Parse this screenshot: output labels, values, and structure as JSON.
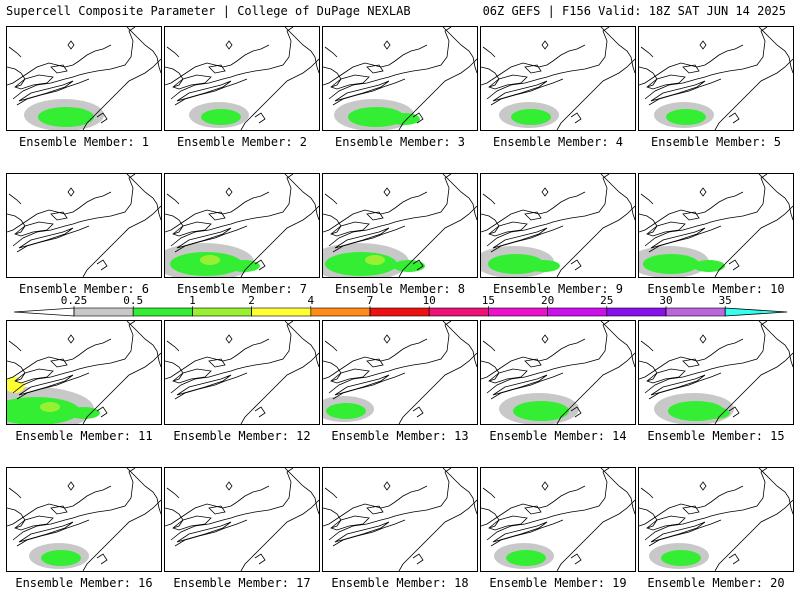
{
  "header": {
    "left_title": "Supercell Composite Parameter | College of DuPage NEXLAB",
    "right_title": "06Z GEFS | F156 Valid: 18Z SAT JUN 14 2025"
  },
  "legend": {
    "ticks": [
      "0.25",
      "0.5",
      "1",
      "2",
      "4",
      "7",
      "10",
      "15",
      "20",
      "25",
      "30",
      "35"
    ],
    "colors": [
      "#c8c8c8",
      "#33ee33",
      "#99f033",
      "#ffff33",
      "#ff8c1a",
      "#ee1111",
      "#ee1177",
      "#ee11cc",
      "#cc11ee",
      "#8811ee",
      "#bb66dd",
      "#33ffee"
    ]
  },
  "panels": [
    {
      "label": "Ensemble Member: 1",
      "intensity": 2
    },
    {
      "label": "Ensemble Member: 2",
      "intensity": 1
    },
    {
      "label": "Ensemble Member: 3",
      "intensity": 2
    },
    {
      "label": "Ensemble Member: 4",
      "intensity": 1
    },
    {
      "label": "Ensemble Member: 5",
      "intensity": 1
    },
    {
      "label": "Ensemble Member: 6",
      "intensity": 0
    },
    {
      "label": "Ensemble Member: 7",
      "intensity": 3
    },
    {
      "label": "Ensemble Member: 8",
      "intensity": 3
    },
    {
      "label": "Ensemble Member: 9",
      "intensity": 2
    },
    {
      "label": "Ensemble Member: 10",
      "intensity": 2
    },
    {
      "label": "Ensemble Member: 11",
      "intensity": 4
    },
    {
      "label": "Ensemble Member: 12",
      "intensity": 0
    },
    {
      "label": "Ensemble Member: 13",
      "intensity": 1
    },
    {
      "label": "Ensemble Member: 14",
      "intensity": 2
    },
    {
      "label": "Ensemble Member: 15",
      "intensity": 2
    },
    {
      "label": "Ensemble Member: 16",
      "intensity": 1
    },
    {
      "label": "Ensemble Member: 17",
      "intensity": 0
    },
    {
      "label": "Ensemble Member: 18",
      "intensity": 0
    },
    {
      "label": "Ensemble Member: 19",
      "intensity": 1
    },
    {
      "label": "Ensemble Member: 20",
      "intensity": 1
    }
  ]
}
